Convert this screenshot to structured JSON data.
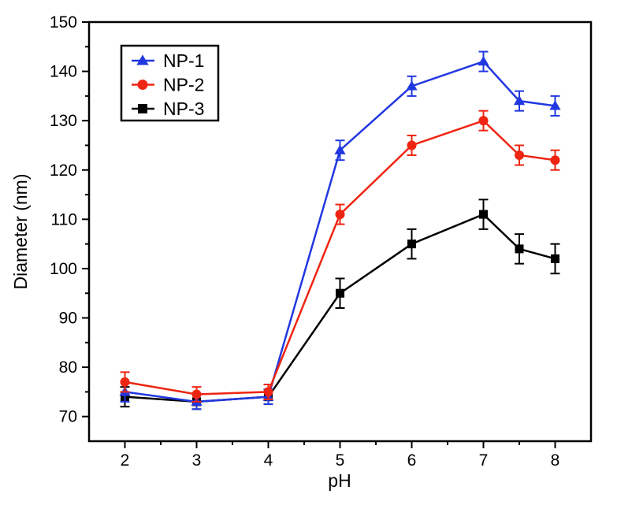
{
  "figure": {
    "background": "#ffffff",
    "text_color": "#000000"
  },
  "chart_data": {
    "type": "line",
    "title": "",
    "xlabel": "pH",
    "ylabel": "Diameter (nm)",
    "xlim": [
      1.5,
      8.5
    ],
    "ylim": [
      65,
      150
    ],
    "grid": false,
    "legend_position": "top-left",
    "x_major_ticks": [
      2,
      3,
      4,
      5,
      6,
      7,
      8
    ],
    "x_minor_ticks": [
      2.5,
      3.5,
      4.5,
      5.5,
      6.5,
      7.5
    ],
    "y_major_ticks": [
      70,
      80,
      90,
      100,
      110,
      120,
      130,
      140,
      150
    ],
    "y_minor_ticks": [
      75,
      85,
      95,
      105,
      115,
      125,
      135,
      145
    ],
    "x": [
      2,
      3,
      4,
      5,
      6,
      7,
      7.5,
      8
    ],
    "series": [
      {
        "name": "NP-1",
        "color": "#2138e0",
        "marker": "triangle",
        "values": [
          75,
          73,
          74,
          124,
          137,
          142,
          134,
          133
        ],
        "errors": [
          2,
          1.5,
          1.5,
          2,
          2,
          2,
          2,
          2
        ]
      },
      {
        "name": "NP-2",
        "color": "#ee2512",
        "marker": "circle",
        "values": [
          77,
          74.5,
          75,
          111,
          125,
          130,
          123,
          122
        ],
        "errors": [
          2,
          1.5,
          1.5,
          2,
          2,
          2,
          2,
          2
        ]
      },
      {
        "name": "NP-3",
        "color": "#000000",
        "marker": "square",
        "values": [
          74,
          73,
          74,
          95,
          105,
          111,
          104,
          102
        ],
        "errors": [
          2,
          1.5,
          1.5,
          3,
          3,
          3,
          3,
          3
        ]
      }
    ]
  }
}
